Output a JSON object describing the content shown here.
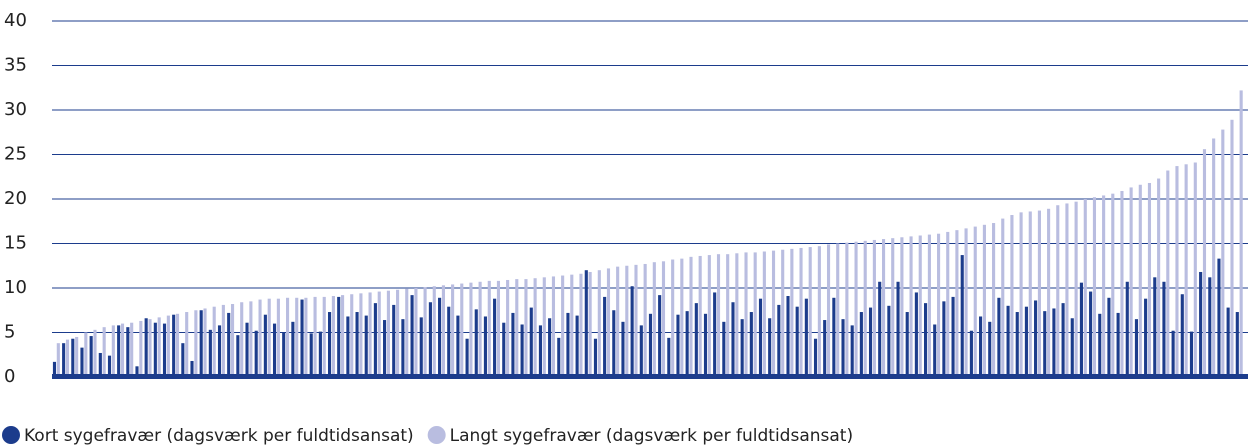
{
  "chart_data": {
    "type": "bar",
    "series": [
      {
        "name": "Kort sygefravær (dagsværk per fuldtidsansat)",
        "color": "#1c3c8c",
        "values": [
          1.7,
          3.8,
          4.3,
          3.3,
          4.6,
          2.7,
          2.4,
          5.8,
          5.6,
          1.2,
          6.6,
          6.1,
          6.0,
          7.0,
          3.8,
          1.8,
          7.5,
          5.3,
          5.8,
          7.2,
          4.7,
          6.1,
          5.2,
          7.0,
          6.0,
          5.0,
          6.2,
          8.7,
          4.9,
          5.1,
          7.3,
          9.0,
          6.8,
          7.3,
          6.9,
          8.3,
          6.4,
          8.1,
          6.5,
          9.2,
          6.7,
          8.4,
          8.9,
          7.9,
          6.9,
          4.3,
          7.6,
          6.8,
          8.8,
          6.1,
          7.2,
          5.9,
          7.8,
          5.8,
          6.6,
          4.4,
          7.2,
          6.9,
          12.0,
          4.3,
          9.0,
          7.5,
          6.2,
          10.2,
          5.8,
          7.1,
          9.2,
          4.4,
          7.0,
          7.4,
          8.3,
          7.1,
          9.5,
          6.2,
          8.4,
          6.5,
          7.3,
          8.8,
          6.6,
          8.1,
          9.1,
          7.9,
          8.8,
          4.3,
          6.4,
          8.9,
          6.5,
          5.8,
          7.3,
          7.8,
          10.7,
          8.0,
          10.7,
          7.3,
          9.5,
          8.3,
          5.9,
          8.5,
          9.0,
          13.7,
          5.2,
          6.8,
          6.2,
          8.9,
          8.0,
          7.3,
          7.9,
          8.6,
          7.4,
          7.7,
          8.3,
          6.6,
          10.6,
          9.6,
          7.1,
          8.9,
          7.2,
          10.7,
          6.5,
          8.8,
          11.2,
          10.7,
          5.2,
          9.3,
          5.1,
          11.8,
          11.2,
          13.3,
          7.8,
          7.3
        ]
      },
      {
        "name": "Langt sygefravær (dagsværk per fuldtidsansat)",
        "color": "#b9bde0",
        "values": [
          3.8,
          4.2,
          4.5,
          5.0,
          5.3,
          5.6,
          5.8,
          6.0,
          6.1,
          6.3,
          6.5,
          6.7,
          6.9,
          7.1,
          7.3,
          7.5,
          7.7,
          7.9,
          8.1,
          8.2,
          8.4,
          8.5,
          8.7,
          8.8,
          8.8,
          8.9,
          8.9,
          8.9,
          9.0,
          9.0,
          9.1,
          9.2,
          9.3,
          9.4,
          9.5,
          9.6,
          9.7,
          9.8,
          9.9,
          10.0,
          10.1,
          10.2,
          10.3,
          10.4,
          10.5,
          10.6,
          10.7,
          10.8,
          10.8,
          10.9,
          11.0,
          11.0,
          11.1,
          11.2,
          11.3,
          11.4,
          11.5,
          11.6,
          11.8,
          12.0,
          12.2,
          12.4,
          12.5,
          12.6,
          12.7,
          12.9,
          13.0,
          13.2,
          13.3,
          13.5,
          13.6,
          13.7,
          13.8,
          13.8,
          13.9,
          14.0,
          14.0,
          14.1,
          14.2,
          14.3,
          14.4,
          14.5,
          14.6,
          14.7,
          14.9,
          15.0,
          15.1,
          15.2,
          15.3,
          15.4,
          15.5,
          15.6,
          15.7,
          15.8,
          15.9,
          16.0,
          16.1,
          16.3,
          16.5,
          16.7,
          16.9,
          17.1,
          17.3,
          17.8,
          18.2,
          18.5,
          18.6,
          18.7,
          18.9,
          19.3,
          19.5,
          19.7,
          20.0,
          20.2,
          20.4,
          20.6,
          20.9,
          21.3,
          21.6,
          21.8,
          22.3,
          23.2,
          23.7,
          23.9,
          24.1,
          25.6,
          26.8,
          27.8,
          28.9,
          32.2
        ]
      }
    ],
    "ylim": [
      0,
      40
    ],
    "yticks": [
      0,
      5,
      10,
      15,
      20,
      25,
      30,
      35,
      40
    ],
    "grid": true
  }
}
